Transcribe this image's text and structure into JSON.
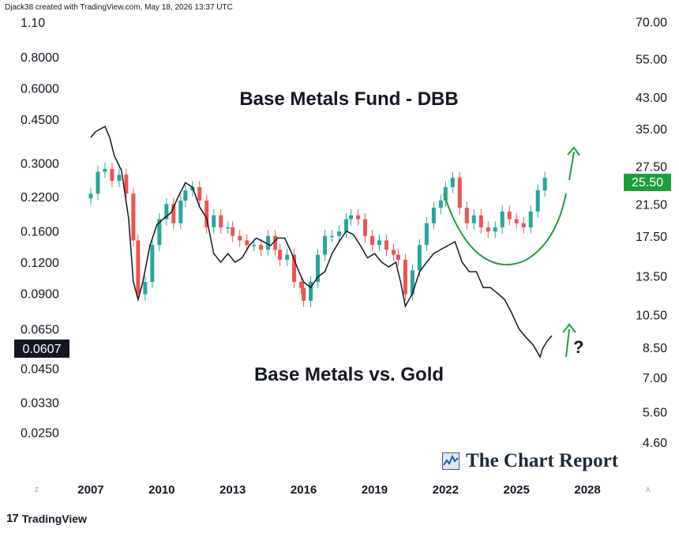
{
  "credit": "Djack38 created with TradingView.com, May 18, 2026 13:37 UTC",
  "tradingview_label": "TradingView",
  "brand": "The Chart Report",
  "corner_left": "Z",
  "corner_right": "A",
  "colors": {
    "up": "#26a69a",
    "down": "#ef5350",
    "ratio_line": "#131722",
    "annotation": "#1e9e3a",
    "last_price_bg": "#1e9e3a",
    "ratio_label_bg": "#131722"
  },
  "chart_data": {
    "type": "line",
    "title": "Base Metals Fund - DBB",
    "subtitle": "Base Metals vs. Gold",
    "x_ticks": [
      "2007",
      "2010",
      "2013",
      "2016",
      "2019",
      "2022",
      "2025",
      "2028"
    ],
    "xlim": [
      2006.5,
      2029.2
    ],
    "left_axis": {
      "scale": "log",
      "ylim": [
        0.02,
        1.15
      ],
      "ticks": [
        "1.10",
        "0.8000",
        "0.6000",
        "0.4500",
        "0.3000",
        "0.2200",
        "0.1600",
        "0.1200",
        "0.0900",
        "0.0650",
        "0.0450",
        "0.0330",
        "0.0250"
      ],
      "last_value": "0.0607"
    },
    "right_axis": {
      "scale": "log",
      "ylim": [
        4.2,
        72
      ],
      "ticks": [
        "70.00",
        "55.00",
        "43.00",
        "35.00",
        "27.50",
        "21.50",
        "17.50",
        "13.50",
        "10.50",
        "8.50",
        "7.00",
        "5.60",
        "4.60"
      ],
      "last_value": "25.50"
    },
    "series": [
      {
        "name": "Base Metals Fund - DBB",
        "axis": "right",
        "style": "candles",
        "x": [
          2007.0,
          2007.3,
          2007.6,
          2007.9,
          2008.2,
          2008.5,
          2008.8,
          2009.0,
          2009.3,
          2009.6,
          2009.9,
          2010.2,
          2010.5,
          2010.8,
          2011.0,
          2011.3,
          2011.6,
          2011.9,
          2012.2,
          2012.5,
          2012.8,
          2013.0,
          2013.3,
          2013.6,
          2013.9,
          2014.2,
          2014.5,
          2014.8,
          2015.0,
          2015.3,
          2015.6,
          2015.9,
          2016.0,
          2016.3,
          2016.6,
          2016.9,
          2017.2,
          2017.5,
          2017.8,
          2018.0,
          2018.3,
          2018.6,
          2018.9,
          2019.2,
          2019.5,
          2019.8,
          2020.0,
          2020.3,
          2020.6,
          2020.9,
          2021.2,
          2021.5,
          2021.8,
          2022.0,
          2022.3,
          2022.6,
          2022.9,
          2023.2,
          2023.5,
          2023.8,
          2024.1,
          2024.4,
          2024.7,
          2025.0,
          2025.3,
          2025.6,
          2025.9,
          2026.2
        ],
        "values": [
          23.0,
          26.5,
          27.0,
          25.0,
          26.0,
          23.0,
          17.0,
          12.0,
          13.0,
          16.5,
          19.5,
          21.5,
          19.0,
          22.0,
          23.5,
          24.0,
          22.0,
          18.5,
          20.0,
          18.5,
          18.5,
          17.5,
          17.0,
          16.5,
          16.5,
          16.0,
          17.5,
          16.0,
          15.0,
          15.5,
          13.0,
          12.5,
          11.5,
          13.0,
          15.5,
          17.5,
          17.5,
          18.0,
          19.5,
          20.0,
          19.5,
          17.5,
          16.5,
          17.0,
          16.0,
          15.5,
          15.0,
          12.0,
          14.0,
          16.5,
          19.0,
          21.0,
          22.0,
          24.0,
          25.5,
          21.0,
          19.0,
          20.0,
          18.5,
          18.0,
          18.5,
          20.5,
          19.5,
          19.0,
          18.5,
          20.5,
          23.5,
          25.5
        ]
      },
      {
        "name": "Base Metals vs. Gold",
        "axis": "left",
        "style": "line",
        "x": [
          2007.0,
          2007.2,
          2007.4,
          2007.6,
          2007.8,
          2008.0,
          2008.3,
          2008.6,
          2008.8,
          2009.0,
          2009.2,
          2009.5,
          2009.8,
          2010.1,
          2010.4,
          2010.7,
          2011.0,
          2011.3,
          2011.6,
          2011.9,
          2012.2,
          2012.5,
          2012.8,
          2013.1,
          2013.4,
          2013.7,
          2014.0,
          2014.3,
          2014.6,
          2014.9,
          2015.2,
          2015.5,
          2015.8,
          2016.0,
          2016.3,
          2016.6,
          2016.9,
          2017.2,
          2017.5,
          2017.8,
          2018.1,
          2018.4,
          2018.7,
          2019.0,
          2019.3,
          2019.6,
          2019.9,
          2020.1,
          2020.3,
          2020.6,
          2020.9,
          2021.2,
          2021.5,
          2021.8,
          2022.1,
          2022.4,
          2022.7,
          2023.0,
          2023.3,
          2023.6,
          2023.9,
          2024.2,
          2024.5,
          2024.8,
          2025.1,
          2025.4,
          2025.7,
          2025.9,
          2026.0,
          2026.1,
          2026.3,
          2026.5
        ],
        "values": [
          0.38,
          0.4,
          0.41,
          0.42,
          0.38,
          0.32,
          0.28,
          0.18,
          0.1,
          0.085,
          0.1,
          0.14,
          0.17,
          0.18,
          0.19,
          0.22,
          0.25,
          0.24,
          0.2,
          0.18,
          0.13,
          0.12,
          0.13,
          0.12,
          0.125,
          0.14,
          0.15,
          0.145,
          0.14,
          0.15,
          0.15,
          0.13,
          0.11,
          0.1,
          0.095,
          0.105,
          0.11,
          0.13,
          0.145,
          0.16,
          0.155,
          0.14,
          0.125,
          0.13,
          0.12,
          0.115,
          0.12,
          0.1,
          0.08,
          0.09,
          0.11,
          0.12,
          0.13,
          0.135,
          0.14,
          0.145,
          0.12,
          0.11,
          0.11,
          0.095,
          0.095,
          0.09,
          0.085,
          0.075,
          0.065,
          0.06,
          0.056,
          0.052,
          0.05,
          0.054,
          0.058,
          0.061
        ]
      }
    ],
    "annotations": [
      "?"
    ]
  }
}
